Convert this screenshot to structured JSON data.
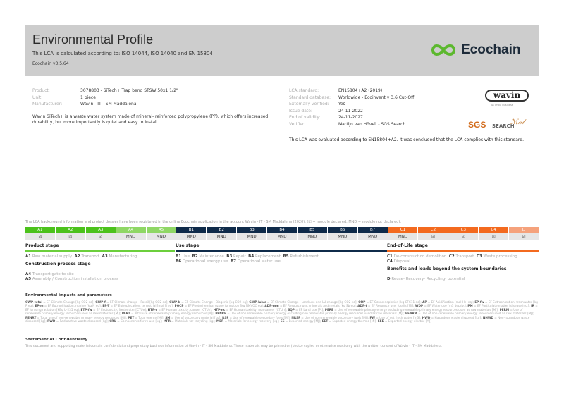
{
  "header": {
    "title": "Environmental Profile",
    "subtitle": "This LCA is calculated according to: ISO 14044, ISO 14040 and EN 15804",
    "version": "Ecochain v3.5.64",
    "logo_text": "Ecochain",
    "logo_color": "#5cb82e"
  },
  "product": [
    {
      "k": "Product:",
      "v": "3078803 - SiTech+ Trap bend STSW 50x1 1/2\""
    },
    {
      "k": "Unit:",
      "v": "1 piece"
    },
    {
      "k": "Manufacturer:",
      "v": "Wavin - IT - SM Maddalena"
    }
  ],
  "description": "Wavin SiTech+ is a waste water system made of mineral- reinforced polypropylene (PP), which offers increased durability, but more importantly is quiet and easy to install.",
  "lca": [
    {
      "k": "LCA standard:",
      "v": "EN15804+A2 (2019)"
    },
    {
      "k": "Standard database:",
      "v": "Worldwide - Ecoinvent v 3.6 Cut-Off"
    },
    {
      "k": "Externally verified:",
      "v": "Yes"
    },
    {
      "k": "Issue date:",
      "v": "24-11-2022"
    },
    {
      "k": "End of validity:",
      "v": "24-11-2027"
    },
    {
      "k": "Verifier:",
      "v": "Martijn van Hövell - SGS Search"
    }
  ],
  "logos": {
    "wavin": "wavin",
    "wavin_sub": "An Orbia business",
    "sgs": "SGS",
    "sgs_search": "SEARCH"
  },
  "evaluation": "This LCA was evaluated according to EN15804+A2. It was concluded that the LCA complies with this standard.",
  "registered": "The LCA background information and project dossier have been registered in the online Ecochain application in the account Wavin - IT - SM Maddalena (2020). (☑ = module declared, MND = module not declared).",
  "modules": [
    {
      "code": "A1",
      "value": "☑",
      "color": "#4cc21c"
    },
    {
      "code": "A2",
      "value": "☑",
      "color": "#4cc21c"
    },
    {
      "code": "A3",
      "value": "☑",
      "color": "#4cc21c"
    },
    {
      "code": "A4",
      "value": "MND",
      "color": "#8fd765"
    },
    {
      "code": "A5",
      "value": "MND",
      "color": "#8fd765"
    },
    {
      "code": "B1",
      "value": "MND",
      "color": "#0f2b4a"
    },
    {
      "code": "B2",
      "value": "MND",
      "color": "#0f2b4a"
    },
    {
      "code": "B3",
      "value": "MND",
      "color": "#0f2b4a"
    },
    {
      "code": "B4",
      "value": "MND",
      "color": "#0f2b4a"
    },
    {
      "code": "B5",
      "value": "MND",
      "color": "#0f2b4a"
    },
    {
      "code": "B6",
      "value": "MND",
      "color": "#0f2b4a"
    },
    {
      "code": "B7",
      "value": "MND",
      "color": "#0f2b4a"
    },
    {
      "code": "C1",
      "value": "MND",
      "color": "#f36a1f"
    },
    {
      "code": "C2",
      "value": "☑",
      "color": "#f36a1f"
    },
    {
      "code": "C3",
      "value": "☑",
      "color": "#f36a1f"
    },
    {
      "code": "C4",
      "value": "☑",
      "color": "#f36a1f"
    },
    {
      "code": "D",
      "value": "☑",
      "color": "#f5a27c"
    }
  ],
  "stages": {
    "product": {
      "title": "Product stage",
      "items": [
        [
          "A1",
          "Raw material supply"
        ],
        [
          "A2",
          "Transport"
        ],
        [
          "A3",
          "Manufacturing"
        ]
      ]
    },
    "construction": {
      "title": "Construction process stage",
      "items": [
        [
          "A4",
          "Transport gate to site"
        ],
        [
          "A5",
          "Assembly / Construction installation process"
        ]
      ]
    },
    "use": {
      "title": "Use stage",
      "items": [
        [
          "B1",
          "Use"
        ],
        [
          "B2",
          "Maintenance"
        ],
        [
          "B3",
          "Repair"
        ],
        [
          "B4",
          "Replacement"
        ],
        [
          "B5",
          "Refurbishment"
        ],
        [
          "B6",
          "Operational energy use"
        ],
        [
          "B7",
          "Operational water use"
        ]
      ]
    },
    "eol": {
      "title": "End-of-Life stage",
      "items": [
        [
          "C1",
          "De-construction demolition"
        ],
        [
          "C2",
          "Transport"
        ],
        [
          "C3",
          "Waste processing"
        ],
        [
          "C4",
          "Disposal"
        ]
      ]
    },
    "benefits": {
      "title": "Benefits and loads beyond the system boundaries",
      "items": [
        [
          "D",
          "Reuse- Recovery- Recycling- potential"
        ]
      ]
    }
  },
  "env": {
    "title": "Environmental impacts and parameters",
    "items": [
      [
        "GWP-total",
        "EF Climate Change [kg CO2 eq]"
      ],
      [
        "GWP-f",
        "EF Climate change - Fossil [kg CO2 eq]"
      ],
      [
        "GWP-b",
        "EF Climate Change - Biogenic [kg CO2 eq]"
      ],
      [
        "GWP-luluc",
        "EF Climate Change - Land use and LU change [kg CO2 eq]"
      ],
      [
        "ODP",
        "EF Ozone depletion [kg CFC11 eq]"
      ],
      [
        "AP",
        "EF Acidification [mol H+ eq]"
      ],
      [
        "EP-fw",
        "EF Eutrophication, freshwater [kg P eq]"
      ],
      [
        "EP-m",
        "EF Eutrophication, marine [kg N eq]"
      ],
      [
        "EP-T",
        "EF Eutrophication, terrestrial [mol N eq]"
      ],
      [
        "POCP",
        "EF Photochemical ozone formation [kg NMVOC eq]"
      ],
      [
        "ADP-mm",
        "EF Resource use, minerals and metals [kg Sb eq]"
      ],
      [
        "ADP-f",
        "EF Resource use, fossils [MJ]"
      ],
      [
        "WDP",
        "EF Water use [m3 depriv.]"
      ],
      [
        "PM",
        "EF Particulate matter [disease inc.]"
      ],
      [
        "IR",
        "EF Ionising radiation [kBq U-235 eq]"
      ],
      [
        "ETP-fw",
        "EF Ecotoxicity, freshwater [CTUe]"
      ],
      [
        "HTP-c",
        "EF Human toxicity, cancer [CTUh]"
      ],
      [
        "HTP-nc",
        "EF Human toxicity, non cancer [CTUh]"
      ],
      [
        "SQP",
        "EF Land use [Pt]"
      ],
      [
        "PERE",
        "Use of renewable primary energy excluding renewable primary energy resources used as raw materials [MJ]"
      ],
      [
        "PERM",
        "Use of renewable primary energy resources used as raw materials [MJ]"
      ],
      [
        "PERT",
        "Total use of renewable primary energy resources [MJ]"
      ],
      [
        "PENRE",
        "Use of non renewable primary energy excluding non renewable primary energy resources used as raw materials [MJ]"
      ],
      [
        "PENRM",
        "Use of non-renewable primary energy resources used as raw materials [MJ]"
      ],
      [
        "PENRT",
        "Total use of non-renewable primary energy resources [MJ]"
      ],
      [
        "PET",
        "Total energy [MJ]"
      ],
      [
        "SM",
        "Use of secondary material [kg]"
      ],
      [
        "RSF",
        "Use of renewable secondary fuels [MJ]"
      ],
      [
        "NRSF",
        "Use of non-renewable secondary fuels [MJ]"
      ],
      [
        "FW",
        "Use of net fresh water [m3]"
      ],
      [
        "HWD",
        "Hazardous waste disposed [kg]"
      ],
      [
        "NHWD",
        "Non-hazardous waste disposed [kg]"
      ],
      [
        "RWD",
        "Radioactive waste disposed [kg]"
      ],
      [
        "CRU",
        "Components for re-use [kg]"
      ],
      [
        "MFR",
        "Materials for recycling [kg]"
      ],
      [
        "MER",
        "Materials for energy recovery [kg]"
      ],
      [
        "EE",
        "Exported energy [MJ]"
      ],
      [
        "EET",
        "Exported energy thermic [MJ]"
      ],
      [
        "EEE",
        "Exported energy electric [MJ]"
      ]
    ]
  },
  "confidentiality": {
    "title": "Statement of Confidentiality",
    "text": "This document and supporting material contain confidential and proprietary business information of Wavin - IT - SM Maddalena. These materials may be printed or (photo) copied or otherwise used only with the written consent of Wavin - IT - SM Maddalena."
  }
}
